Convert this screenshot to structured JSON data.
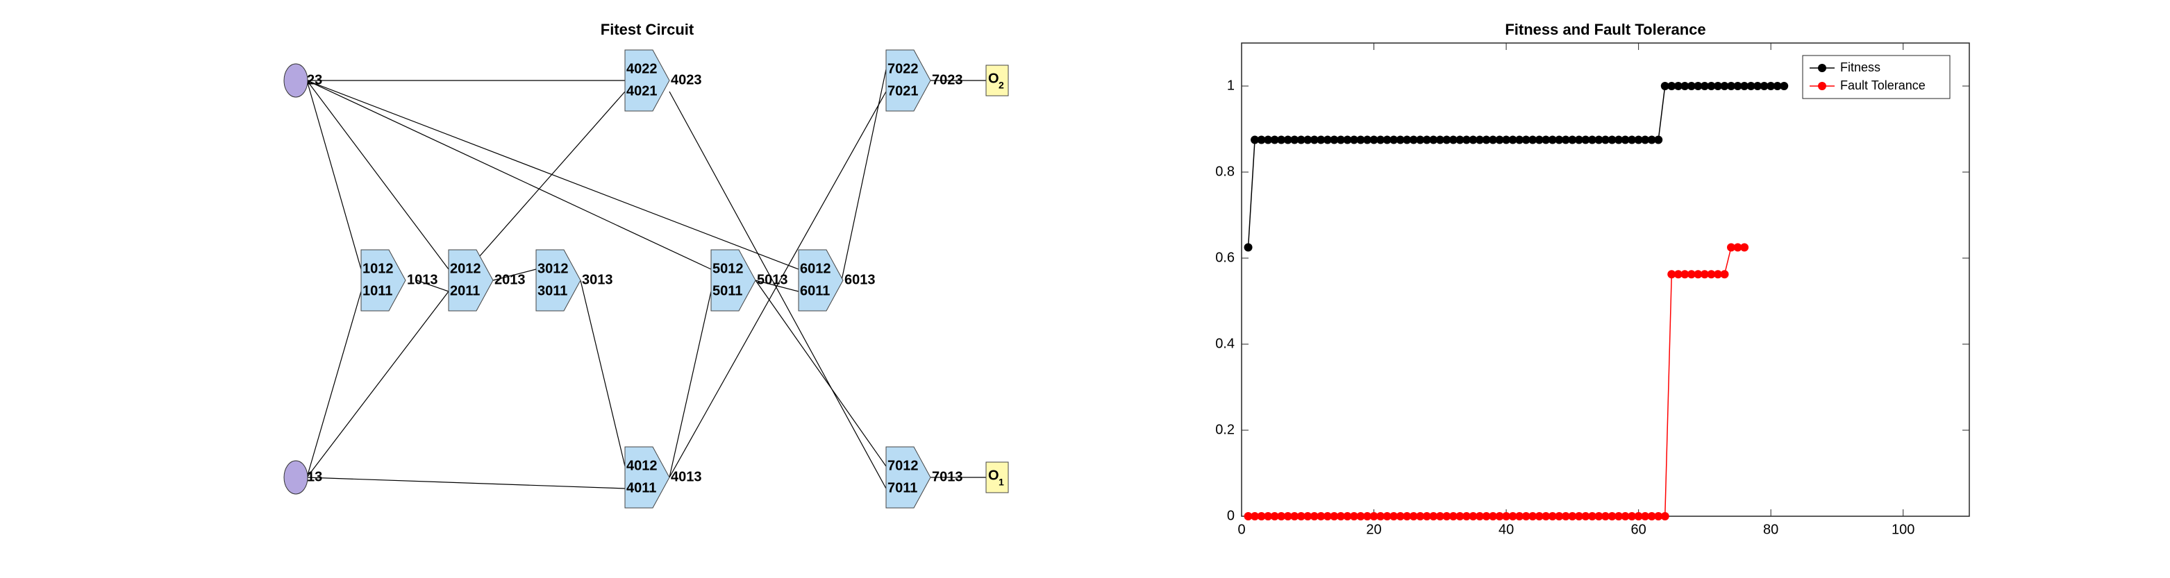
{
  "diagram": {
    "title": "Fitest Circuit",
    "inputs": [
      "23",
      "13"
    ],
    "gates": [
      {
        "inputs": [
          "1012",
          "1011"
        ],
        "output": "1013"
      },
      {
        "inputs": [
          "2012",
          "2011"
        ],
        "output": "2013"
      },
      {
        "inputs": [
          "3012",
          "3011"
        ],
        "output": "3013"
      },
      {
        "inputs": [
          "4022",
          "4021"
        ],
        "output": "4023"
      },
      {
        "inputs": [
          "4012",
          "4011"
        ],
        "output": "4013"
      },
      {
        "inputs": [
          "5012",
          "5011"
        ],
        "output": "5013"
      },
      {
        "inputs": [
          "6012",
          "6011"
        ],
        "output": "6013"
      },
      {
        "inputs": [
          "7022",
          "7021"
        ],
        "output": "7023"
      },
      {
        "inputs": [
          "7012",
          "7011"
        ],
        "output": "7013"
      }
    ],
    "outputs": [
      {
        "label": "O",
        "subscript": "2"
      },
      {
        "label": "O",
        "subscript": "1"
      }
    ]
  },
  "chart_data": {
    "type": "line",
    "title": "Fitness and Fault Tolerance",
    "x": [
      1,
      2,
      3,
      4,
      5,
      6,
      7,
      8,
      9,
      10,
      11,
      12,
      13,
      14,
      15,
      16,
      17,
      18,
      19,
      20,
      21,
      22,
      23,
      24,
      25,
      26,
      27,
      28,
      29,
      30,
      31,
      32,
      33,
      34,
      35,
      36,
      37,
      38,
      39,
      40,
      41,
      42,
      43,
      44,
      45,
      46,
      47,
      48,
      49,
      50,
      51,
      52,
      53,
      54,
      55,
      56,
      57,
      58,
      59,
      60,
      61,
      62,
      63,
      64,
      65,
      66,
      67,
      68,
      69,
      70,
      71,
      72,
      73,
      74,
      75,
      76,
      77,
      78,
      79,
      80,
      81,
      82
    ],
    "series": [
      {
        "name": "Fitness",
        "color": "#000000",
        "values": [
          0.625,
          0.875,
          0.875,
          0.875,
          0.875,
          0.875,
          0.875,
          0.875,
          0.875,
          0.875,
          0.875,
          0.875,
          0.875,
          0.875,
          0.875,
          0.875,
          0.875,
          0.875,
          0.875,
          0.875,
          0.875,
          0.875,
          0.875,
          0.875,
          0.875,
          0.875,
          0.875,
          0.875,
          0.875,
          0.875,
          0.875,
          0.875,
          0.875,
          0.875,
          0.875,
          0.875,
          0.875,
          0.875,
          0.875,
          0.875,
          0.875,
          0.875,
          0.875,
          0.875,
          0.875,
          0.875,
          0.875,
          0.875,
          0.875,
          0.875,
          0.875,
          0.875,
          0.875,
          0.875,
          0.875,
          0.875,
          0.875,
          0.875,
          0.875,
          0.875,
          0.875,
          0.875,
          0.875,
          1,
          1,
          1,
          1,
          1,
          1,
          1,
          1,
          1,
          1,
          1,
          1,
          1,
          1,
          1,
          1,
          1,
          1,
          1
        ]
      },
      {
        "name": "Fault Tolerance",
        "color": "#ff0000",
        "values": [
          0,
          0,
          0,
          0,
          0,
          0,
          0,
          0,
          0,
          0,
          0,
          0,
          0,
          0,
          0,
          0,
          0,
          0,
          0,
          0,
          0,
          0,
          0,
          0,
          0,
          0,
          0,
          0,
          0,
          0,
          0,
          0,
          0,
          0,
          0,
          0,
          0,
          0,
          0,
          0,
          0,
          0,
          0,
          0,
          0,
          0,
          0,
          0,
          0,
          0,
          0,
          0,
          0,
          0,
          0,
          0,
          0,
          0,
          0,
          0,
          0,
          0,
          0,
          0,
          0.5625,
          0.5625,
          0.5625,
          0.5625,
          0.5625,
          0.5625,
          0.5625,
          0.5625,
          0.5625,
          0.625,
          0.625,
          0.625,
          null,
          null,
          null,
          null,
          null,
          null
        ]
      }
    ],
    "xlim": [
      0,
      110
    ],
    "xticks": [
      0,
      20,
      40,
      60,
      80,
      100
    ],
    "ylim": [
      0,
      1.1
    ],
    "yticks": [
      0,
      0.2,
      0.4,
      0.6,
      0.8,
      1
    ],
    "legend": "upper right",
    "grid": false
  }
}
